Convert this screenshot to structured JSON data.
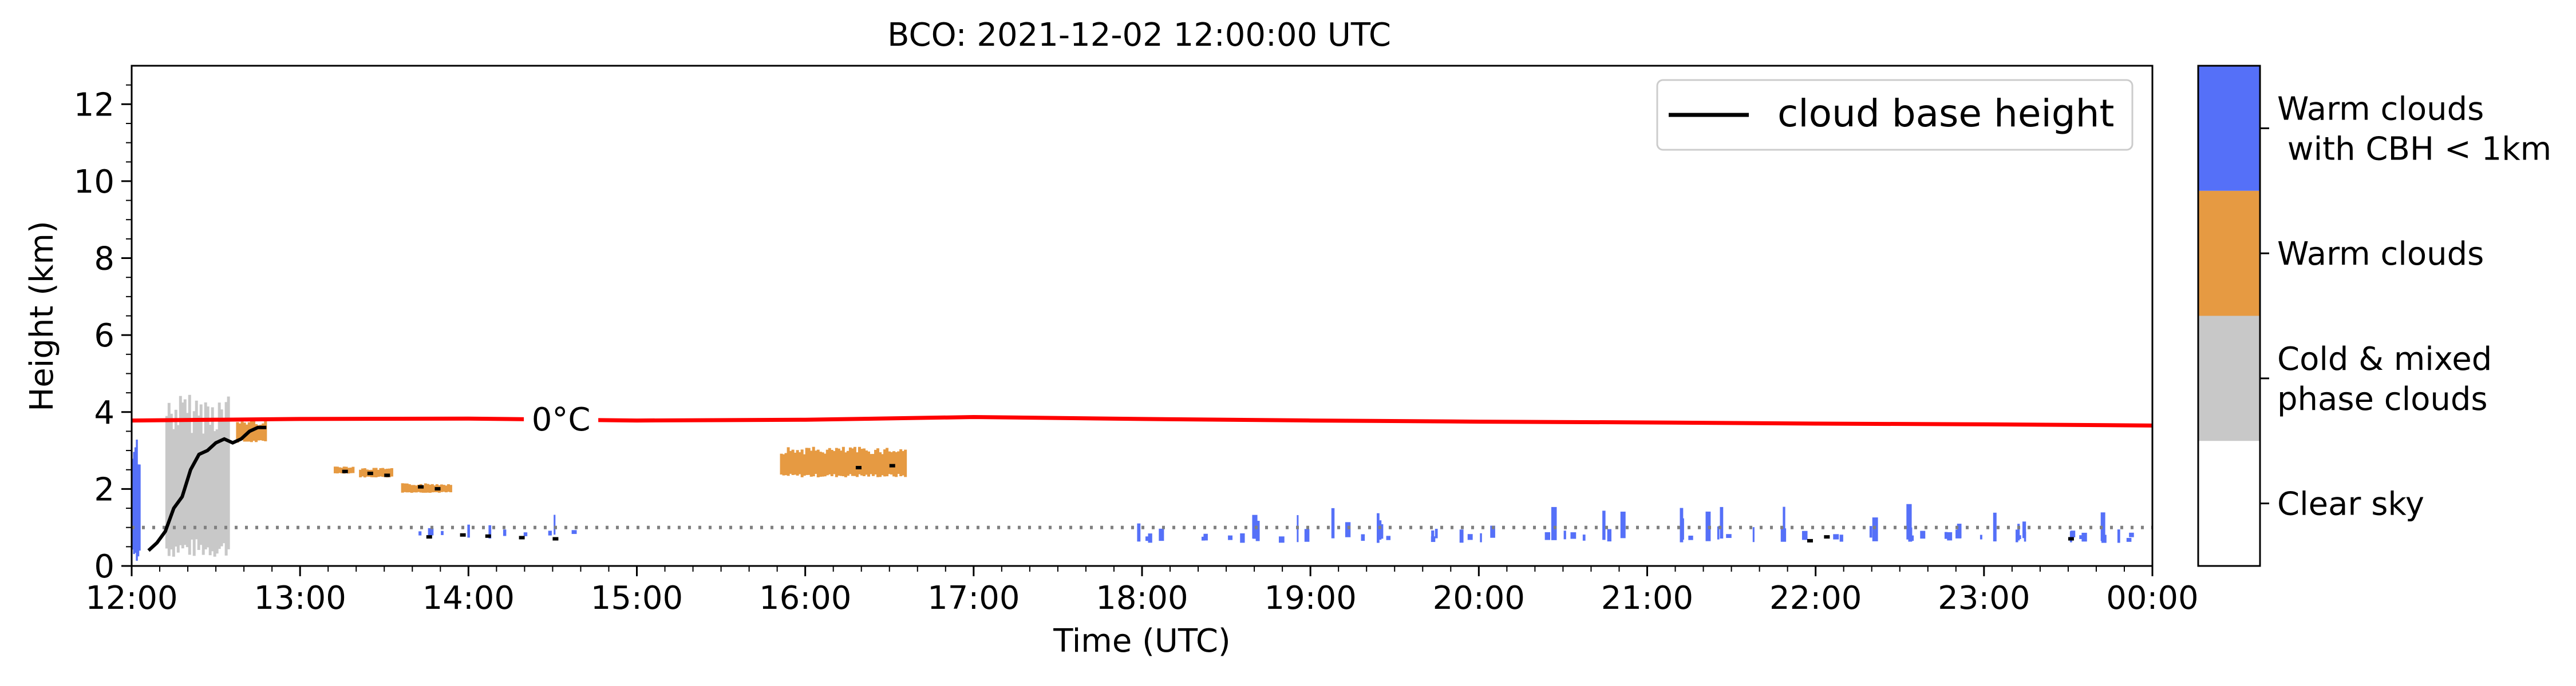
{
  "chart_data": {
    "type": "area",
    "title": "BCO: 2021-12-02 12:00:00 UTC",
    "xlabel": "Time (UTC)",
    "ylabel": "Height (km)",
    "xlim": [
      "12:00",
      "00:00"
    ],
    "ylim": [
      0,
      13
    ],
    "x_tick_labels": [
      "12:00",
      "13:00",
      "14:00",
      "15:00",
      "16:00",
      "17:00",
      "18:00",
      "19:00",
      "20:00",
      "21:00",
      "22:00",
      "23:00",
      "00:00"
    ],
    "y_tick_values": [
      0,
      2,
      4,
      6,
      8,
      10,
      12
    ],
    "y_tick_labels": [
      "0",
      "2",
      "4",
      "6",
      "8",
      "10",
      "12"
    ],
    "legend": {
      "label": "cloud base height",
      "placement": "top-right"
    },
    "freezing_level": {
      "label": "0°C",
      "color": "#ff0000",
      "x_hours": [
        0,
        1,
        2,
        3,
        4,
        5,
        6,
        7,
        8,
        9,
        10,
        11,
        12
      ],
      "height_km": [
        3.78,
        3.82,
        3.83,
        3.78,
        3.8,
        3.87,
        3.82,
        3.78,
        3.75,
        3.73,
        3.7,
        3.68,
        3.65
      ]
    },
    "reference_line": {
      "height_km": 1.0,
      "style": "dotted",
      "color": "#808080"
    },
    "colorbar": {
      "categories": [
        {
          "label": "Clear sky",
          "color": "#ffffff"
        },
        {
          "label": "Cold & mixed phase clouds",
          "color": "#c8c8c8"
        },
        {
          "label": "Warm clouds",
          "color": "#e69a42"
        },
        {
          "label": "Warm clouds with CBH < 1km",
          "color": "#5570f8"
        }
      ]
    },
    "cloud_regions": [
      {
        "category": "Cold & mixed phase clouds",
        "x_start": 0.2,
        "x_end": 0.58,
        "base_km": 0.2,
        "top_km": 4.5
      },
      {
        "category": "Warm clouds",
        "x_start": 0.62,
        "x_end": 0.8,
        "base_km": 3.2,
        "top_km": 3.8
      },
      {
        "category": "Warm clouds",
        "x_start": 1.2,
        "x_end": 1.32,
        "base_km": 2.4,
        "top_km": 2.6
      },
      {
        "category": "Warm clouds",
        "x_start": 1.35,
        "x_end": 1.55,
        "base_km": 2.3,
        "top_km": 2.55
      },
      {
        "category": "Warm clouds",
        "x_start": 1.6,
        "x_end": 1.9,
        "base_km": 1.9,
        "top_km": 2.15
      },
      {
        "category": "Warm clouds",
        "x_start": 3.85,
        "x_end": 4.6,
        "base_km": 2.3,
        "top_km": 3.1
      },
      {
        "category": "Warm clouds with CBH < 1km",
        "x_start": 0.0,
        "x_end": 0.05,
        "base_km": 0.1,
        "top_km": 3.4
      },
      {
        "category": "Warm clouds with CBH < 1km",
        "x_start": 1.7,
        "x_end": 2.65,
        "base_km": 0.7,
        "top_km": 1.5
      },
      {
        "category": "Warm clouds with CBH < 1km",
        "x_start": 5.95,
        "x_end": 12.0,
        "base_km": 0.6,
        "top_km": 1.7
      }
    ],
    "cloud_base_height_km": {
      "x_hours": [
        0.1,
        0.15,
        0.2,
        0.25,
        0.3,
        0.35,
        0.4,
        0.45,
        0.5,
        0.55,
        0.6,
        0.65,
        0.7,
        0.75,
        0.8
      ],
      "height_km": [
        0.4,
        0.6,
        0.9,
        1.5,
        1.8,
        2.5,
        2.9,
        3.0,
        3.2,
        3.3,
        3.2,
        3.3,
        3.5,
        3.6,
        3.6
      ]
    }
  }
}
